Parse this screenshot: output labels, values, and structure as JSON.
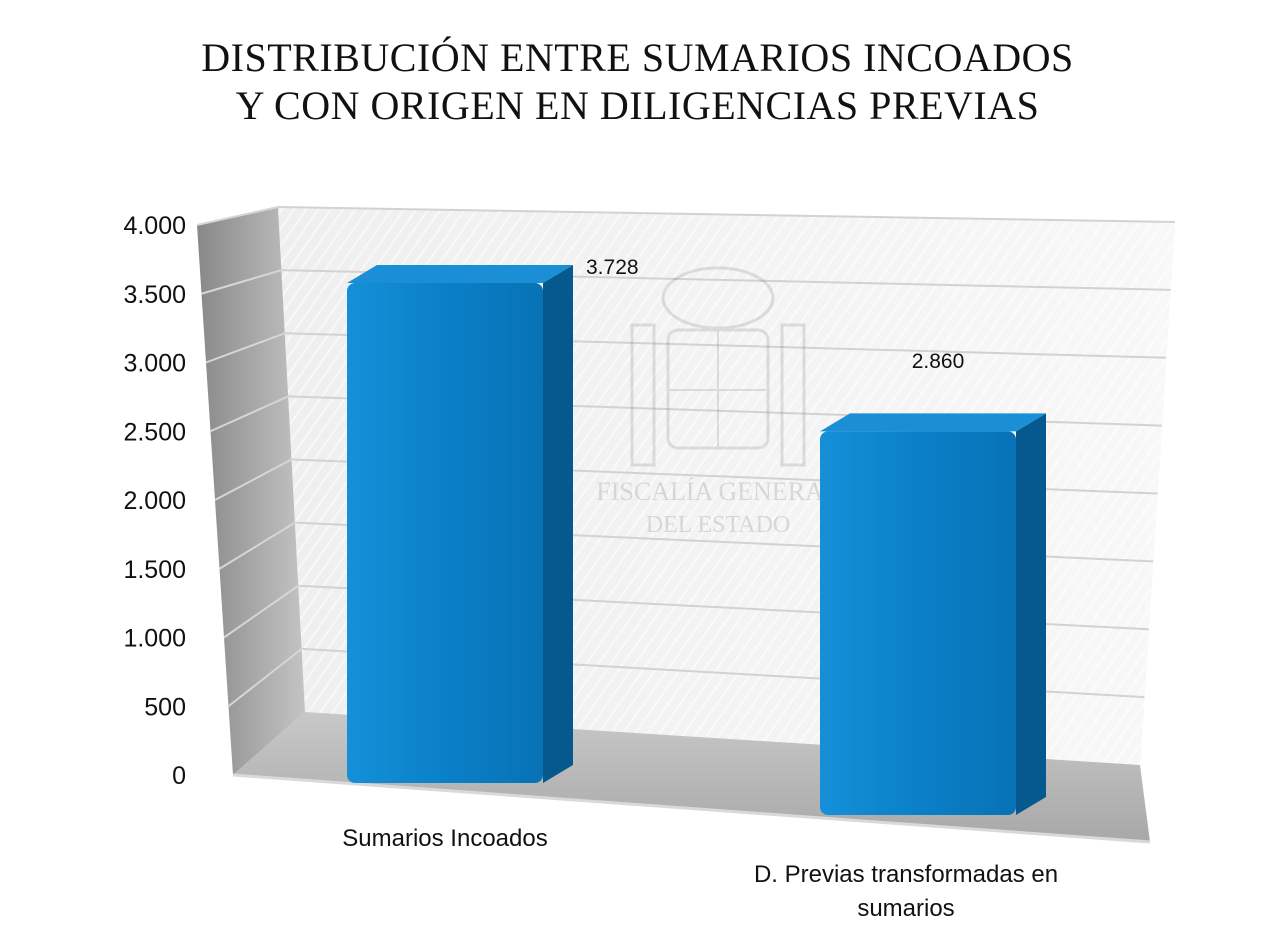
{
  "chart_data": {
    "type": "bar",
    "title_lines": [
      "DISTRIBUCIÓN ENTRE SUMARIOS INCOADOS",
      "Y CON ORIGEN EN DILIGENCIAS PREVIAS"
    ],
    "categories": [
      "Sumarios Incoados",
      "D. Previas transformadas en sumarios"
    ],
    "category_label_lines": [
      [
        "Sumarios Incoados"
      ],
      [
        "D. Previas transformadas en",
        "sumarios"
      ]
    ],
    "values": [
      3728,
      2860
    ],
    "data_labels": [
      "3.728",
      "2.860"
    ],
    "ylim": [
      0,
      4000
    ],
    "yticks": [
      0,
      500,
      1000,
      1500,
      2000,
      2500,
      3000,
      3500,
      4000
    ],
    "ytick_labels": [
      "0",
      "500",
      "1.000",
      "1.500",
      "2.000",
      "2.500",
      "3.000",
      "3.500",
      "4.000"
    ],
    "grid": true,
    "legend": "none",
    "colors": {
      "bar_front": "#0a7fc6",
      "bar_side": "#05598f",
      "bar_top": "#1a8fd6",
      "floor": "#b5b5b5",
      "wall": "#e8e8e8",
      "side_wall": "#9a9a9a"
    },
    "watermark_lines": [
      "FISCALÍA GENERAL",
      "DEL ESTADO"
    ]
  }
}
